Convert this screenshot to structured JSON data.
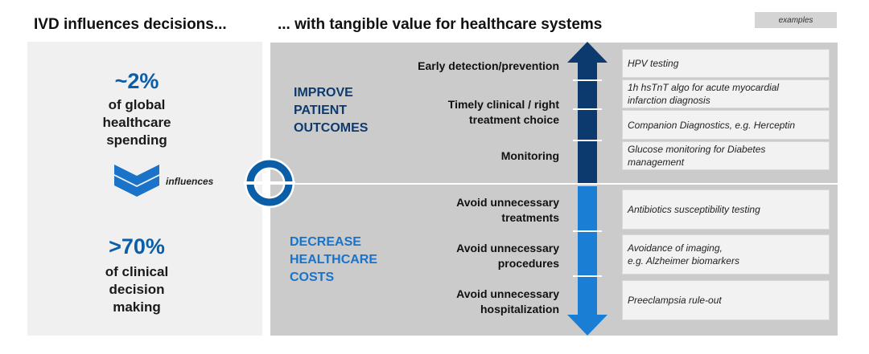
{
  "headings": {
    "left": "IVD influences decisions...",
    "right": "... with tangible value for healthcare systems"
  },
  "examples_tag": "examples",
  "left_panel": {
    "top_value": "~2%",
    "top_caption": "of global\nhealthcare\nspending",
    "influences_label": "influences",
    "bottom_value": ">70%",
    "bottom_caption": "of clinical\ndecision\nmaking"
  },
  "sections": {
    "improve": {
      "title": "IMPROVE\nPATIENT\nOUTCOMES",
      "outcomes": [
        "Early detection/prevention",
        "Timely clinical / right\ntreatment choice",
        "Monitoring"
      ],
      "examples": [
        "HPV testing",
        "1h hsTnT algo for acute myocardial\ninfarction diagnosis",
        "Companion Diagnostics, e.g. Herceptin",
        "Glucose monitoring for Diabetes\nmanagement"
      ]
    },
    "decrease": {
      "title": "DECREASE\nHEALTHCARE\nCOSTS",
      "outcomes": [
        "Avoid unnecessary\ntreatments",
        "Avoid unnecessary\nprocedures",
        "Avoid unnecessary\nhospitalization"
      ],
      "examples": [
        "Antibiotics susceptibility testing",
        "Avoidance of imaging,\ne.g. Alzheimer biomarkers",
        "Preeclampsia rule-out"
      ]
    }
  },
  "colors": {
    "dark_blue": "#0d3a6e",
    "light_blue": "#1a7fd4",
    "accent_blue": "#0a5ea8",
    "panel_gray": "#cbcbcb"
  }
}
